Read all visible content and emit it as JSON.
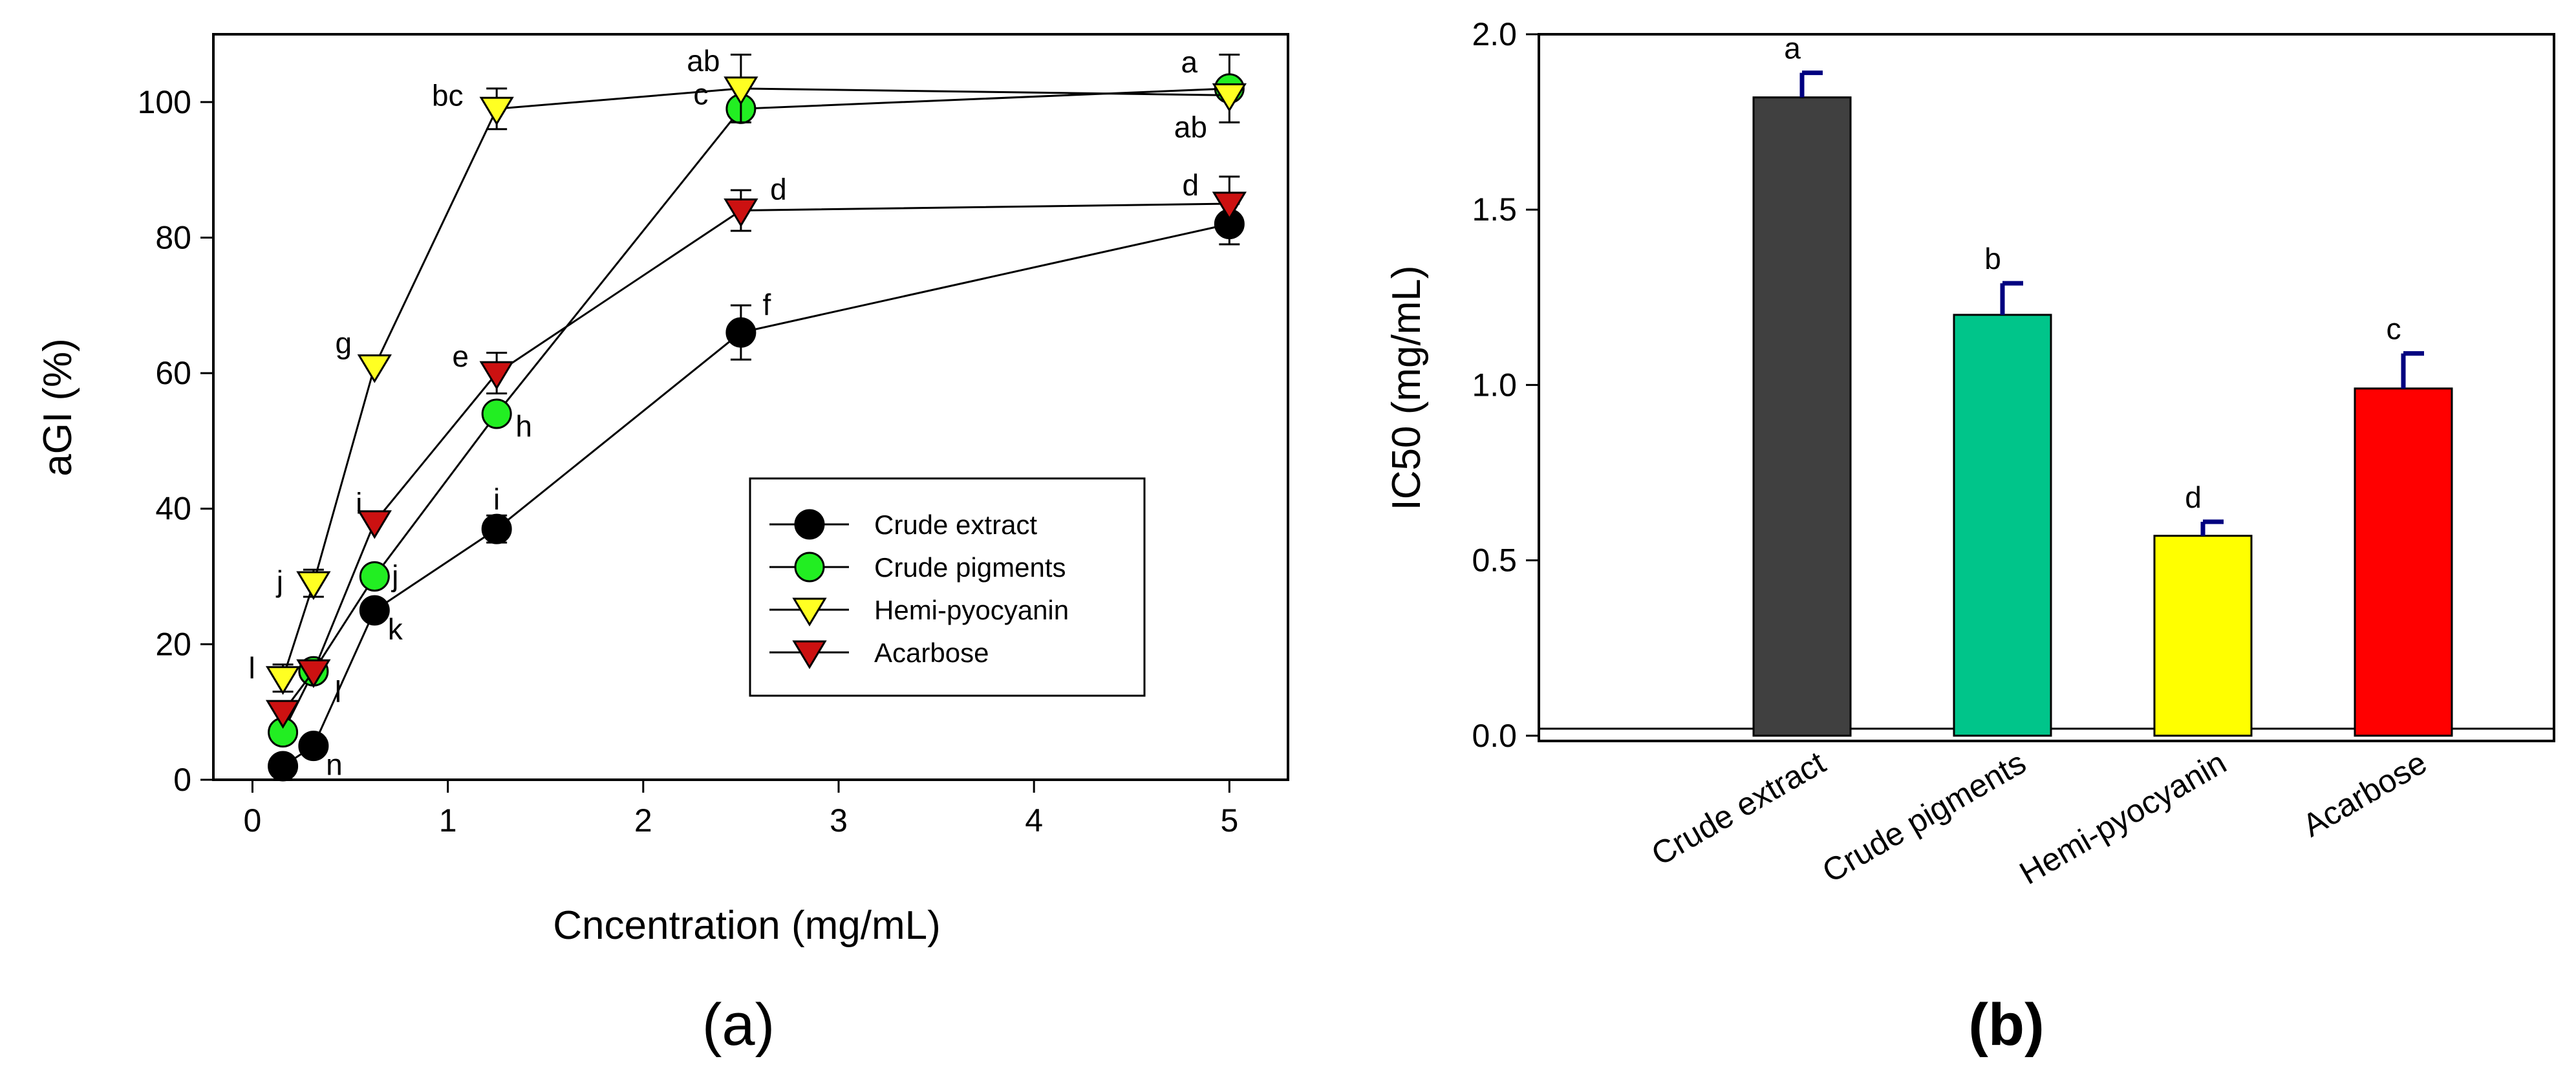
{
  "chart_data": [
    {
      "type": "line",
      "panel_label": "(a)",
      "xlabel": "Cncentration (mg/mL)",
      "ylabel": "aGI (%)",
      "xlim": [
        -0.2,
        5.3
      ],
      "ylim": [
        0,
        110
      ],
      "xticks": [
        0,
        1,
        2,
        3,
        4,
        5
      ],
      "yticks": [
        0,
        20,
        40,
        60,
        80,
        100
      ],
      "grid": false,
      "legend_position": "bottom-right",
      "series": [
        {
          "name": "Crude extract",
          "marker": "circle",
          "color": "#000000",
          "x": [
            0.156,
            0.3125,
            0.625,
            1.25,
            2.5,
            5
          ],
          "y": [
            2,
            5,
            25,
            37,
            66,
            82
          ],
          "err": [
            0,
            0,
            0,
            2,
            4,
            3
          ],
          "labels": [
            "",
            "n",
            "k",
            "i",
            "f",
            ""
          ]
        },
        {
          "name": "Crude pigments",
          "marker": "circle",
          "color": "#22ee22",
          "x": [
            0.156,
            0.3125,
            0.625,
            1.25,
            2.5,
            5
          ],
          "y": [
            7,
            16,
            30,
            54,
            99,
            102
          ],
          "err": [
            0,
            0,
            0,
            0,
            0,
            5
          ],
          "labels": [
            "",
            "",
            "j",
            "h",
            "c",
            "a"
          ]
        },
        {
          "name": "Hemi-pyocyanin",
          "marker": "triangle-down",
          "color": "#ffff22",
          "x": [
            0.156,
            0.3125,
            0.625,
            1.25,
            2.5,
            5
          ],
          "y": [
            15,
            29,
            61,
            99,
            102,
            101
          ],
          "err": [
            2,
            2,
            0,
            3,
            5,
            0
          ],
          "labels": [
            "l",
            "j",
            "g",
            "bc",
            "ab",
            "ab"
          ]
        },
        {
          "name": "Acarbose",
          "marker": "triangle-down",
          "color": "#cc1111",
          "x": [
            0.156,
            0.3125,
            0.625,
            1.25,
            2.5,
            5
          ],
          "y": [
            10,
            16,
            38,
            60,
            84,
            85
          ],
          "err": [
            0,
            0,
            0,
            3,
            3,
            4
          ],
          "labels": [
            "",
            "l",
            "i",
            "e",
            "d",
            "d"
          ]
        }
      ]
    },
    {
      "type": "bar",
      "panel_label": "(b)",
      "xlabel": "",
      "ylabel": "IC50 (mg/mL)",
      "ylim": [
        -0.015,
        2.0
      ],
      "yticks": [
        0.0,
        0.5,
        1.0,
        1.5,
        2.0
      ],
      "ytick_labels": [
        "0.0",
        "0.5",
        "1.0",
        "1.5",
        "2.0"
      ],
      "reference_line": 0.02,
      "categories": [
        "Crude extract",
        "Crude pigments",
        "Hemi-pyocyanin",
        "Acarbose"
      ],
      "values": [
        1.82,
        1.2,
        0.57,
        0.99
      ],
      "errors": [
        0.07,
        0.09,
        0.04,
        0.1
      ],
      "bar_colors": [
        "#404040",
        "#00c58a",
        "#ffff00",
        "#ff0000"
      ],
      "error_color": "#000080",
      "labels": [
        "a",
        "b",
        "d",
        "c"
      ]
    }
  ]
}
